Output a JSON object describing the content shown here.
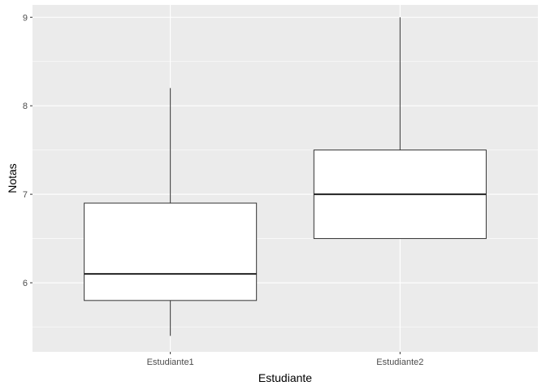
{
  "chart_data": {
    "type": "boxplot",
    "title": "",
    "xlabel": "Estudiante",
    "ylabel": "Notas",
    "categories": [
      "Estudiante1",
      "Estudiante2"
    ],
    "boxes": [
      {
        "category": "Estudiante1",
        "min": 5.4,
        "q1": 5.8,
        "median": 6.1,
        "q3": 6.9,
        "max": 8.2
      },
      {
        "category": "Estudiante2",
        "min": 6.5,
        "q1": 6.5,
        "median": 7.0,
        "q3": 7.5,
        "max": 9.0
      }
    ],
    "ylim": [
      5.22,
      9.14
    ],
    "yticks": [
      6,
      7,
      8,
      9
    ],
    "grid": true,
    "legend": "none",
    "colors": {
      "panel": "#EBEBEB",
      "grid": "#FFFFFF",
      "box_fill": "#FFFFFF",
      "box_line": "#333333",
      "tick_text": "#4D4D4D"
    }
  }
}
